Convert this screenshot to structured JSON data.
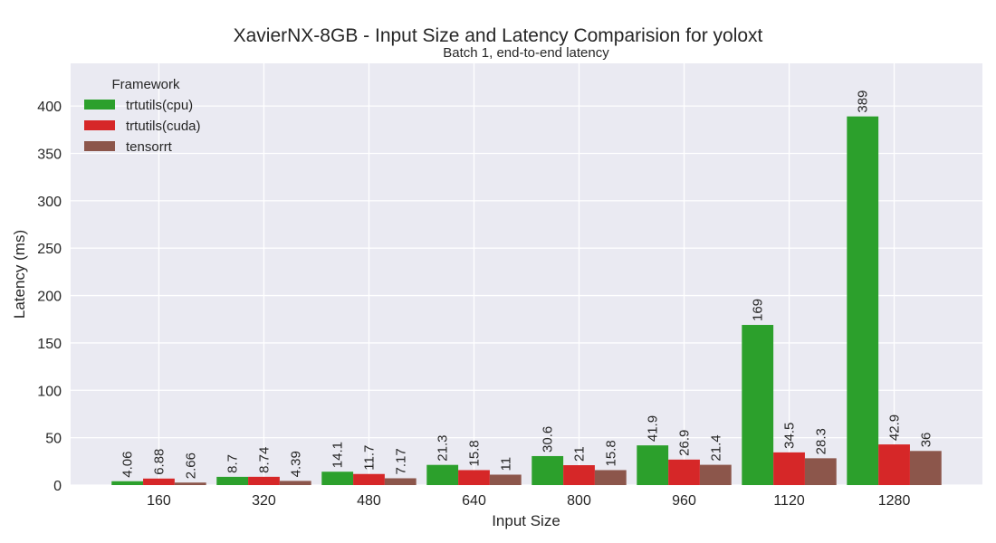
{
  "colors": {
    "plot_bg": "#eaeaf2",
    "grid": "#ffffff",
    "text": "#262626"
  },
  "chart_data": {
    "type": "bar",
    "title": "XavierNX-8GB - Input Size and Latency Comparision for yoloxt",
    "subtitle": "Batch 1, end-to-end latency",
    "xlabel": "Input Size",
    "ylabel": "Latency (ms)",
    "ylim": [
      0,
      445
    ],
    "yticks": [
      0,
      50,
      100,
      150,
      200,
      250,
      300,
      350,
      400
    ],
    "grid": true,
    "legend": {
      "title": "Framework",
      "placement": "top-left"
    },
    "categories": [
      "160",
      "320",
      "480",
      "640",
      "800",
      "960",
      "1120",
      "1280"
    ],
    "series": [
      {
        "name": "trtutils(cpu)",
        "color": "#2ca02c",
        "values": [
          4.06,
          8.7,
          14.1,
          21.3,
          30.6,
          41.9,
          169,
          389
        ],
        "labels": [
          "4.06",
          "8.7",
          "14.1",
          "21.3",
          "30.6",
          "41.9",
          "169",
          "389"
        ]
      },
      {
        "name": "trtutils(cuda)",
        "color": "#d62728",
        "values": [
          6.88,
          8.74,
          11.7,
          15.8,
          21,
          26.9,
          34.5,
          42.9
        ],
        "labels": [
          "6.88",
          "8.74",
          "11.7",
          "15.8",
          "21",
          "26.9",
          "34.5",
          "42.9"
        ]
      },
      {
        "name": "tensorrt",
        "color": "#8c564b",
        "values": [
          2.66,
          4.39,
          7.17,
          11,
          15.8,
          21.4,
          28.3,
          36
        ],
        "labels": [
          "2.66",
          "4.39",
          "7.17",
          "11",
          "15.8",
          "21.4",
          "28.3",
          "36"
        ]
      }
    ]
  }
}
